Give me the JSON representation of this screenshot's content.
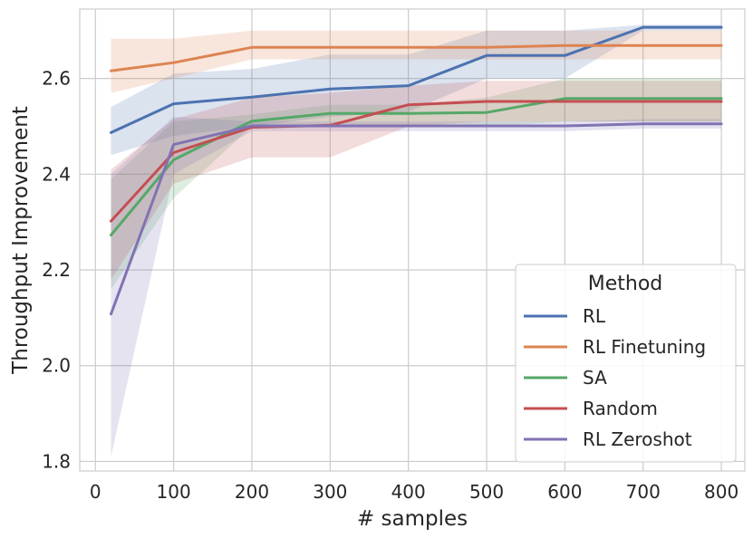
{
  "chart_data": {
    "type": "line",
    "title": "",
    "xlabel": "# samples",
    "ylabel": "Throughput Improvement",
    "xlim": [
      -20,
      830
    ],
    "ylim": [
      1.78,
      2.745
    ],
    "xticks": [
      0,
      100,
      200,
      300,
      400,
      500,
      600,
      700,
      800
    ],
    "xtick_labels": [
      "0",
      "100",
      "200",
      "300",
      "400",
      "500",
      "600",
      "700",
      "800"
    ],
    "yticks": [
      1.8,
      2.0,
      2.2,
      2.4,
      2.6
    ],
    "ytick_labels": [
      "1.8",
      "2.0",
      "2.2",
      "2.4",
      "2.6"
    ],
    "grid": true,
    "legend": {
      "title": "Method",
      "position": "lower-right"
    },
    "x": [
      20,
      100,
      200,
      300,
      400,
      500,
      600,
      700,
      800
    ],
    "series": [
      {
        "name": "RL",
        "color": "#4c72b0",
        "values": [
          2.487,
          2.547,
          2.561,
          2.578,
          2.585,
          2.648,
          2.648,
          2.707,
          2.707
        ],
        "lower": [
          2.44,
          2.48,
          2.5,
          2.52,
          2.53,
          2.6,
          2.6,
          2.7,
          2.7
        ],
        "upper": [
          2.54,
          2.61,
          2.62,
          2.65,
          2.65,
          2.7,
          2.7,
          2.712,
          2.712
        ]
      },
      {
        "name": "RL Finetuning",
        "color": "#dd8452",
        "values": [
          2.616,
          2.633,
          2.665,
          2.665,
          2.665,
          2.665,
          2.669,
          2.669,
          2.669
        ],
        "lower": [
          2.57,
          2.6,
          2.64,
          2.64,
          2.64,
          2.64,
          2.64,
          2.64,
          2.64
        ],
        "upper": [
          2.683,
          2.683,
          2.7,
          2.7,
          2.7,
          2.7,
          2.7,
          2.7,
          2.7
        ]
      },
      {
        "name": "SA",
        "color": "#55a868",
        "values": [
          2.273,
          2.43,
          2.511,
          2.527,
          2.527,
          2.529,
          2.558,
          2.558,
          2.558
        ],
        "lower": [
          2.16,
          2.35,
          2.5,
          2.5,
          2.5,
          2.5,
          2.51,
          2.51,
          2.51
        ],
        "upper": [
          2.39,
          2.51,
          2.525,
          2.545,
          2.545,
          2.56,
          2.6,
          2.6,
          2.6
        ]
      },
      {
        "name": "Random",
        "color": "#c44e52",
        "values": [
          2.302,
          2.445,
          2.498,
          2.502,
          2.545,
          2.552,
          2.552,
          2.552,
          2.552
        ],
        "lower": [
          2.18,
          2.38,
          2.435,
          2.435,
          2.5,
          2.51,
          2.51,
          2.51,
          2.51
        ],
        "upper": [
          2.41,
          2.515,
          2.56,
          2.57,
          2.585,
          2.595,
          2.595,
          2.595,
          2.595
        ]
      },
      {
        "name": "RL Zeroshot",
        "color": "#8172b3",
        "values": [
          2.108,
          2.462,
          2.501,
          2.501,
          2.501,
          2.501,
          2.501,
          2.505,
          2.505
        ],
        "lower": [
          1.81,
          2.4,
          2.49,
          2.49,
          2.49,
          2.49,
          2.49,
          2.495,
          2.495
        ],
        "upper": [
          2.4,
          2.52,
          2.51,
          2.51,
          2.51,
          2.51,
          2.51,
          2.515,
          2.515
        ]
      }
    ]
  }
}
